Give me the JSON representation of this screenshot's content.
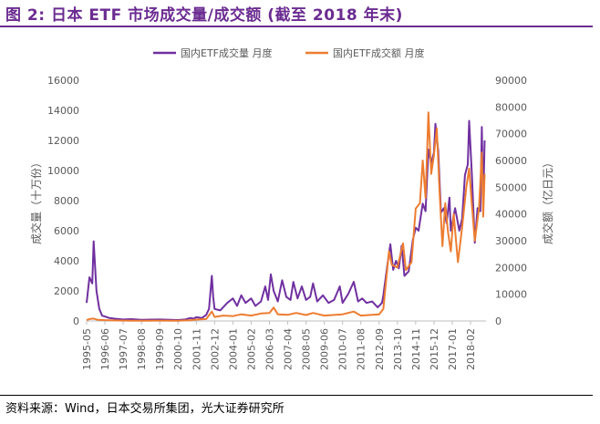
{
  "title": "图 2: 日本 ETF 市场成交量/成交额 (截至 2018 年末)",
  "source": "资料来源：Wind，日本交易所集团，光大证券研究所",
  "colors": {
    "title": "#6b2c91",
    "volume": "#7030a0",
    "turnover": "#ed7d31",
    "axis_text": "#595959"
  },
  "chart_data": {
    "type": "line",
    "legend_position": "top",
    "grid": false,
    "x_tick_labels": [
      "1995-05",
      "1996-06",
      "1997-07",
      "1998-08",
      "1999-09",
      "2000-10",
      "2001-11",
      "2002-12",
      "2004-01",
      "2005-02",
      "2006-03",
      "2007-04",
      "2008-05",
      "2009-06",
      "2010-07",
      "2011-08",
      "2012-09",
      "2013-10",
      "2014-11",
      "2015-12",
      "2017-01",
      "2018-02"
    ],
    "y_left": {
      "label": "成交量（十万份）",
      "min": 0,
      "max": 16000,
      "ticks": [
        0,
        2000,
        4000,
        6000,
        8000,
        10000,
        12000,
        14000,
        16000
      ]
    },
    "y_right": {
      "label": "成交额（亿日元）",
      "min": 0,
      "max": 90000,
      "ticks": [
        0,
        10000,
        20000,
        30000,
        40000,
        50000,
        60000,
        70000,
        80000,
        90000
      ]
    },
    "series": [
      {
        "name": "国内ETF成交量 月度",
        "axis": "left",
        "color": "#7030a0",
        "points": [
          [
            "1995-05",
            1200
          ],
          [
            "1995-07",
            2900
          ],
          [
            "1995-09",
            2500
          ],
          [
            "1995-10",
            5300
          ],
          [
            "1995-12",
            2000
          ],
          [
            "1996-02",
            800
          ],
          [
            "1996-04",
            350
          ],
          [
            "1996-06",
            300
          ],
          [
            "1996-09",
            200
          ],
          [
            "1997-01",
            150
          ],
          [
            "1997-07",
            100
          ],
          [
            "1998-01",
            120
          ],
          [
            "1998-08",
            80
          ],
          [
            "1999-03",
            90
          ],
          [
            "1999-09",
            100
          ],
          [
            "2000-05",
            70
          ],
          [
            "2000-10",
            60
          ],
          [
            "2001-03",
            100
          ],
          [
            "2001-07",
            200
          ],
          [
            "2001-09",
            150
          ],
          [
            "2001-11",
            250
          ],
          [
            "2002-03",
            200
          ],
          [
            "2002-06",
            400
          ],
          [
            "2002-08",
            800
          ],
          [
            "2002-10",
            3000
          ],
          [
            "2002-11",
            1600
          ],
          [
            "2002-12",
            800
          ],
          [
            "2003-04",
            700
          ],
          [
            "2003-09",
            1200
          ],
          [
            "2004-01",
            1500
          ],
          [
            "2004-04",
            1000
          ],
          [
            "2004-07",
            1700
          ],
          [
            "2004-10",
            1200
          ],
          [
            "2005-02",
            1500
          ],
          [
            "2005-05",
            1000
          ],
          [
            "2005-09",
            1300
          ],
          [
            "2005-12",
            2300
          ],
          [
            "2006-02",
            1400
          ],
          [
            "2006-04",
            3100
          ],
          [
            "2006-06",
            2000
          ],
          [
            "2006-09",
            1300
          ],
          [
            "2006-12",
            2700
          ],
          [
            "2007-03",
            1600
          ],
          [
            "2007-06",
            1400
          ],
          [
            "2007-08",
            2600
          ],
          [
            "2007-11",
            1500
          ],
          [
            "2008-02",
            2300
          ],
          [
            "2008-05",
            1400
          ],
          [
            "2008-08",
            1600
          ],
          [
            "2008-10",
            2500
          ],
          [
            "2009-01",
            1300
          ],
          [
            "2009-05",
            1700
          ],
          [
            "2009-09",
            1200
          ],
          [
            "2010-01",
            1400
          ],
          [
            "2010-05",
            2300
          ],
          [
            "2010-07",
            1200
          ],
          [
            "2010-11",
            1800
          ],
          [
            "2011-03",
            2600
          ],
          [
            "2011-06",
            1300
          ],
          [
            "2011-09",
            1500
          ],
          [
            "2011-12",
            1200
          ],
          [
            "2012-04",
            1300
          ],
          [
            "2012-08",
            900
          ],
          [
            "2012-11",
            1200
          ],
          [
            "2012-12",
            1700
          ],
          [
            "2013-03",
            3800
          ],
          [
            "2013-05",
            5100
          ],
          [
            "2013-07",
            3400
          ],
          [
            "2013-09",
            4000
          ],
          [
            "2013-11",
            3500
          ],
          [
            "2014-01",
            5000
          ],
          [
            "2014-03",
            3000
          ],
          [
            "2014-06",
            3300
          ],
          [
            "2014-09",
            5400
          ],
          [
            "2014-11",
            6200
          ],
          [
            "2015-01",
            6000
          ],
          [
            "2015-04",
            7800
          ],
          [
            "2015-06",
            7300
          ],
          [
            "2015-08",
            11400
          ],
          [
            "2015-10",
            10500
          ],
          [
            "2015-12",
            11200
          ],
          [
            "2016-01",
            13100
          ],
          [
            "2016-03",
            11300
          ],
          [
            "2016-05",
            7200
          ],
          [
            "2016-07",
            7500
          ],
          [
            "2016-09",
            6500
          ],
          [
            "2016-11",
            8200
          ],
          [
            "2016-12",
            6000
          ],
          [
            "2017-03",
            7500
          ],
          [
            "2017-06",
            6000
          ],
          [
            "2017-08",
            6800
          ],
          [
            "2017-10",
            9700
          ],
          [
            "2017-12",
            10400
          ],
          [
            "2018-01",
            13300
          ],
          [
            "2018-03",
            9600
          ],
          [
            "2018-05",
            5200
          ],
          [
            "2018-07",
            7500
          ],
          [
            "2018-09",
            7300
          ],
          [
            "2018-10",
            12900
          ],
          [
            "2018-11",
            7700
          ],
          [
            "2018-12",
            12000
          ]
        ]
      },
      {
        "name": "国内ETF成交额 月度",
        "axis": "right",
        "color": "#ed7d31",
        "points": [
          [
            "1995-05",
            300
          ],
          [
            "1995-07",
            700
          ],
          [
            "1995-10",
            900
          ],
          [
            "1996-01",
            400
          ],
          [
            "1996-06",
            300
          ],
          [
            "1997-01",
            200
          ],
          [
            "1997-07",
            150
          ],
          [
            "1998-08",
            100
          ],
          [
            "1999-09",
            120
          ],
          [
            "2000-10",
            100
          ],
          [
            "2001-07",
            300
          ],
          [
            "2001-11",
            500
          ],
          [
            "2002-06",
            700
          ],
          [
            "2002-10",
            3500
          ],
          [
            "2002-12",
            1500
          ],
          [
            "2003-06",
            2000
          ],
          [
            "2004-01",
            1800
          ],
          [
            "2004-07",
            2500
          ],
          [
            "2005-02",
            2000
          ],
          [
            "2005-09",
            2800
          ],
          [
            "2006-03",
            3000
          ],
          [
            "2006-06",
            5000
          ],
          [
            "2006-09",
            2500
          ],
          [
            "2007-04",
            2300
          ],
          [
            "2007-10",
            3000
          ],
          [
            "2008-05",
            2200
          ],
          [
            "2008-10",
            3000
          ],
          [
            "2009-06",
            2000
          ],
          [
            "2010-07",
            2500
          ],
          [
            "2011-03",
            3500
          ],
          [
            "2011-08",
            2000
          ],
          [
            "2012-09",
            2500
          ],
          [
            "2012-12",
            4500
          ],
          [
            "2013-04",
            26000
          ],
          [
            "2013-06",
            21000
          ],
          [
            "2013-10",
            20000
          ],
          [
            "2014-02",
            29000
          ],
          [
            "2014-04",
            19000
          ],
          [
            "2014-08",
            22000
          ],
          [
            "2014-11",
            42000
          ],
          [
            "2015-02",
            44000
          ],
          [
            "2015-04",
            60000
          ],
          [
            "2015-06",
            46000
          ],
          [
            "2015-08",
            78000
          ],
          [
            "2015-10",
            55000
          ],
          [
            "2015-12",
            62000
          ],
          [
            "2016-02",
            72000
          ],
          [
            "2016-04",
            48000
          ],
          [
            "2016-06",
            28000
          ],
          [
            "2016-08",
            44000
          ],
          [
            "2016-10",
            33000
          ],
          [
            "2016-12",
            26000
          ],
          [
            "2017-02",
            40000
          ],
          [
            "2017-05",
            22000
          ],
          [
            "2017-08",
            35000
          ],
          [
            "2017-11",
            50000
          ],
          [
            "2018-01",
            57000
          ],
          [
            "2018-03",
            43000
          ],
          [
            "2018-05",
            30000
          ],
          [
            "2018-08",
            42000
          ],
          [
            "2018-10",
            63000
          ],
          [
            "2018-11",
            39000
          ],
          [
            "2018-12",
            55000
          ]
        ]
      }
    ]
  }
}
